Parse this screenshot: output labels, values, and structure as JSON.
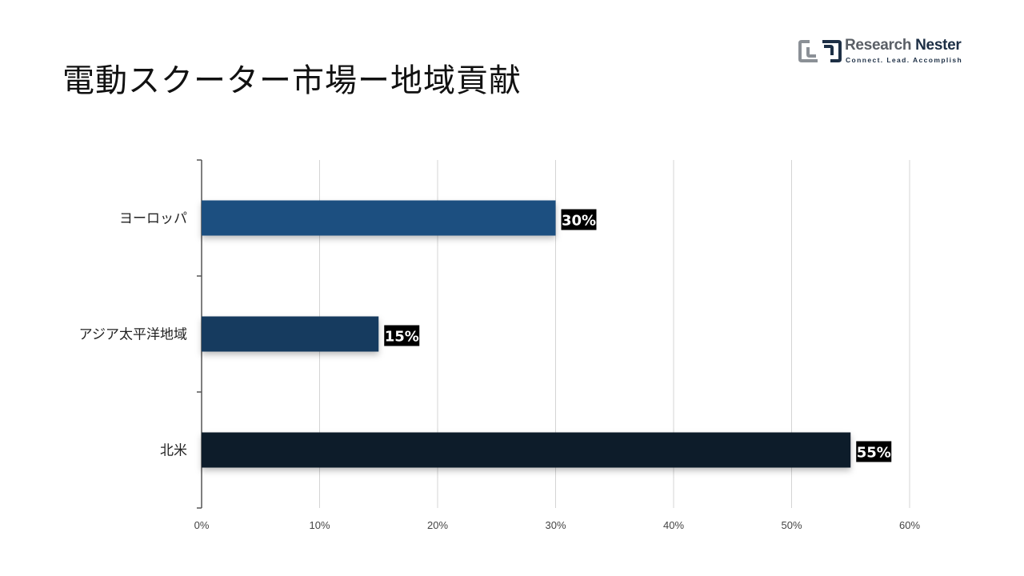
{
  "logo": {
    "brand_part1": "Research",
    "brand_part2": "Nester",
    "tagline": "Connect. Lead. Accomplish"
  },
  "chart_data": {
    "type": "bar",
    "orientation": "horizontal",
    "title": "電動スクーター市場ー地域貢献",
    "categories": [
      "ヨーロッパ",
      "アジア太平洋地域",
      "北米"
    ],
    "values": [
      30,
      15,
      55
    ],
    "data_labels": [
      "30%",
      "15%",
      "55%"
    ],
    "bar_colors": [
      "#1f5080",
      "#173a5e",
      "#0f1c2b"
    ],
    "xlim": [
      0,
      60
    ],
    "xticks": [
      0,
      10,
      20,
      30,
      40,
      50,
      60
    ],
    "xtick_labels": [
      "0%",
      "10%",
      "20%",
      "30%",
      "40%",
      "50%",
      "60%"
    ],
    "grid": "vertical",
    "legend": "none"
  }
}
